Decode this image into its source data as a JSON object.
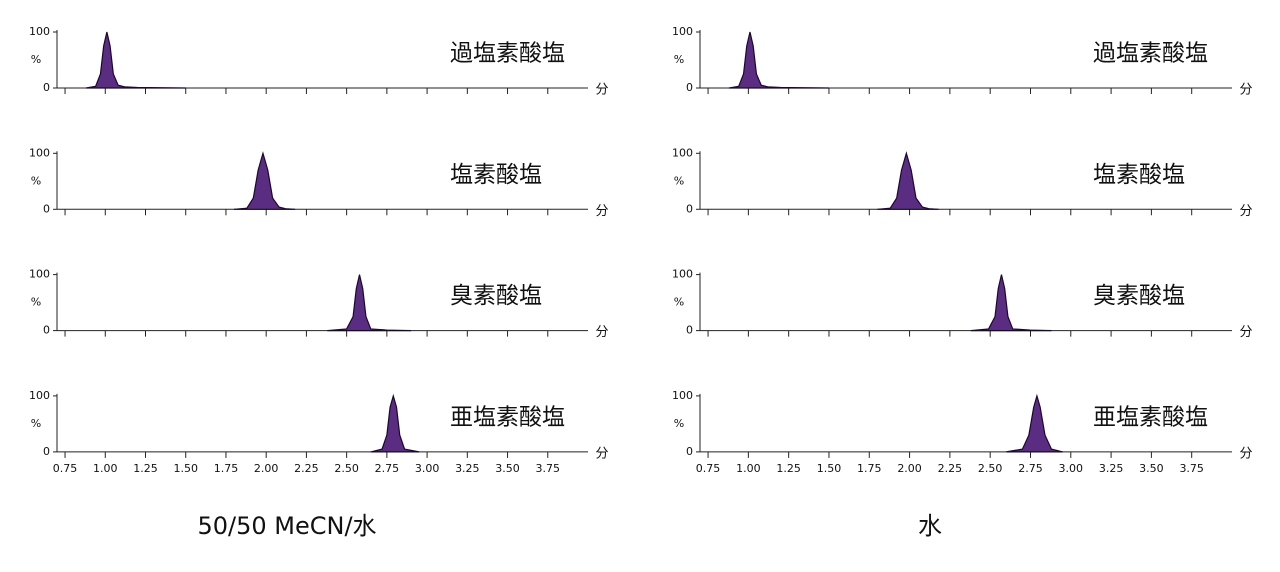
{
  "captions": [
    "50/50 MeCN/水",
    "水"
  ],
  "chart_data": [
    {
      "type": "area",
      "label": "過塩素酸塩",
      "color": "#5a2d82",
      "ylabel": "%",
      "xlabel": "分",
      "xlim": [
        0.7,
        4.0
      ],
      "ylim": [
        0,
        100
      ],
      "yticks": [
        0,
        100
      ],
      "xticks": [
        0.75,
        1,
        1.25,
        1.5,
        1.75,
        2,
        2.25,
        2.5,
        2.75,
        3,
        3.25,
        3.5,
        3.75
      ],
      "x": [
        0.88,
        0.94,
        0.97,
        0.99,
        1.01,
        1.03,
        1.05,
        1.08,
        1.12,
        1.2,
        1.5
      ],
      "values": [
        0,
        3,
        25,
        75,
        100,
        75,
        25,
        5,
        2,
        1,
        0
      ]
    },
    {
      "type": "area",
      "label": "塩素酸塩",
      "color": "#5a2d82",
      "ylabel": "%",
      "xlabel": "分",
      "xlim": [
        0.7,
        4.0
      ],
      "ylim": [
        0,
        100
      ],
      "yticks": [
        0,
        100
      ],
      "xticks": [
        0.75,
        1,
        1.25,
        1.5,
        1.75,
        2,
        2.25,
        2.5,
        2.75,
        3,
        3.25,
        3.5,
        3.75
      ],
      "x": [
        1.8,
        1.88,
        1.92,
        1.95,
        1.98,
        2.01,
        2.04,
        2.08,
        2.12,
        2.18
      ],
      "values": [
        0,
        2,
        20,
        70,
        100,
        70,
        20,
        4,
        1,
        0
      ]
    },
    {
      "type": "area",
      "label": "臭素酸塩",
      "color": "#5a2d82",
      "ylabel": "%",
      "xlabel": "分",
      "xlim": [
        0.7,
        4.0
      ],
      "ylim": [
        0,
        100
      ],
      "yticks": [
        0,
        100
      ],
      "xticks": [
        0.75,
        1,
        1.25,
        1.5,
        1.75,
        2,
        2.25,
        2.5,
        2.75,
        3,
        3.25,
        3.5,
        3.75
      ],
      "x": [
        2.38,
        2.5,
        2.54,
        2.56,
        2.58,
        2.6,
        2.62,
        2.65,
        2.75,
        2.9
      ],
      "values": [
        0,
        3,
        25,
        75,
        100,
        75,
        25,
        3,
        1,
        0
      ]
    },
    {
      "type": "area",
      "label": "亜塩素酸塩",
      "color": "#5a2d82",
      "ylabel": "%",
      "xlabel": "分",
      "xlim": [
        0.7,
        4.0
      ],
      "ylim": [
        0,
        100
      ],
      "yticks": [
        0,
        100
      ],
      "xticks": [
        {
          "value": 0.75,
          "label": "0.75"
        },
        {
          "value": 1,
          "label": "1.00"
        },
        {
          "value": 1.25,
          "label": "1.25"
        },
        {
          "value": 1.5,
          "label": "1.50"
        },
        {
          "value": 1.75,
          "label": "1.75"
        },
        {
          "value": 2,
          "label": "2.00"
        },
        {
          "value": 2.25,
          "label": "2.25"
        },
        {
          "value": 2.5,
          "label": "2.50"
        },
        {
          "value": 2.75,
          "label": "2.75"
        },
        {
          "value": 3,
          "label": "3.00"
        },
        {
          "value": 3.25,
          "label": "3.25"
        },
        {
          "value": 3.5,
          "label": "3.50"
        },
        {
          "value": 3.75,
          "label": "3.75"
        }
      ],
      "x": [
        2.65,
        2.72,
        2.75,
        2.77,
        2.79,
        2.81,
        2.83,
        2.86,
        2.95
      ],
      "values": [
        0,
        5,
        30,
        80,
        100,
        80,
        30,
        5,
        0
      ]
    },
    {
      "type": "area",
      "label": "過塩素酸塩",
      "color": "#5a2d82",
      "ylabel": "%",
      "xlabel": "分",
      "xlim": [
        0.7,
        4.0
      ],
      "ylim": [
        0,
        100
      ],
      "yticks": [
        0,
        100
      ],
      "xticks": [
        0.75,
        1,
        1.25,
        1.5,
        1.75,
        2,
        2.25,
        2.5,
        2.75,
        3,
        3.25,
        3.5,
        3.75
      ],
      "x": [
        0.88,
        0.94,
        0.97,
        0.99,
        1.01,
        1.03,
        1.05,
        1.08,
        1.12,
        1.2,
        1.5
      ],
      "values": [
        0,
        3,
        25,
        75,
        100,
        75,
        25,
        5,
        2,
        1,
        0
      ]
    },
    {
      "type": "area",
      "label": "塩素酸塩",
      "color": "#5a2d82",
      "ylabel": "%",
      "xlabel": "分",
      "xlim": [
        0.7,
        4.0
      ],
      "ylim": [
        0,
        100
      ],
      "yticks": [
        0,
        100
      ],
      "xticks": [
        0.75,
        1,
        1.25,
        1.5,
        1.75,
        2,
        2.25,
        2.5,
        2.75,
        3,
        3.25,
        3.5,
        3.75
      ],
      "x": [
        1.8,
        1.88,
        1.92,
        1.95,
        1.98,
        2.01,
        2.04,
        2.08,
        2.12,
        2.18
      ],
      "values": [
        0,
        2,
        20,
        70,
        100,
        70,
        20,
        4,
        1,
        0
      ]
    },
    {
      "type": "area",
      "label": "臭素酸塩",
      "color": "#5a2d82",
      "ylabel": "%",
      "xlabel": "分",
      "xlim": [
        0.7,
        4.0
      ],
      "ylim": [
        0,
        100
      ],
      "yticks": [
        0,
        100
      ],
      "xticks": [
        0.75,
        1,
        1.25,
        1.5,
        1.75,
        2,
        2.25,
        2.5,
        2.75,
        3,
        3.25,
        3.5,
        3.75
      ],
      "x": [
        2.38,
        2.49,
        2.53,
        2.55,
        2.57,
        2.59,
        2.61,
        2.64,
        2.75,
        2.88
      ],
      "values": [
        0,
        3,
        25,
        75,
        100,
        75,
        25,
        3,
        1,
        0
      ]
    },
    {
      "type": "area",
      "label": "亜塩素酸塩",
      "color": "#5a2d82",
      "ylabel": "%",
      "xlabel": "分",
      "xlim": [
        0.7,
        4.0
      ],
      "ylim": [
        0,
        100
      ],
      "yticks": [
        0,
        100
      ],
      "xticks": [
        {
          "value": 0.75,
          "label": "0.75"
        },
        {
          "value": 1,
          "label": "1.00"
        },
        {
          "value": 1.25,
          "label": "1.25"
        },
        {
          "value": 1.5,
          "label": "1.50"
        },
        {
          "value": 1.75,
          "label": "1.75"
        },
        {
          "value": 2,
          "label": "2.00"
        },
        {
          "value": 2.25,
          "label": "2.25"
        },
        {
          "value": 2.5,
          "label": "2.50"
        },
        {
          "value": 2.75,
          "label": "2.75"
        },
        {
          "value": 3,
          "label": "3.00"
        },
        {
          "value": 3.25,
          "label": "3.25"
        },
        {
          "value": 3.5,
          "label": "3.50"
        },
        {
          "value": 3.75,
          "label": "3.75"
        }
      ],
      "x": [
        2.6,
        2.7,
        2.74,
        2.77,
        2.79,
        2.81,
        2.84,
        2.88,
        2.95
      ],
      "values": [
        0,
        5,
        30,
        80,
        100,
        80,
        30,
        5,
        0
      ]
    }
  ]
}
